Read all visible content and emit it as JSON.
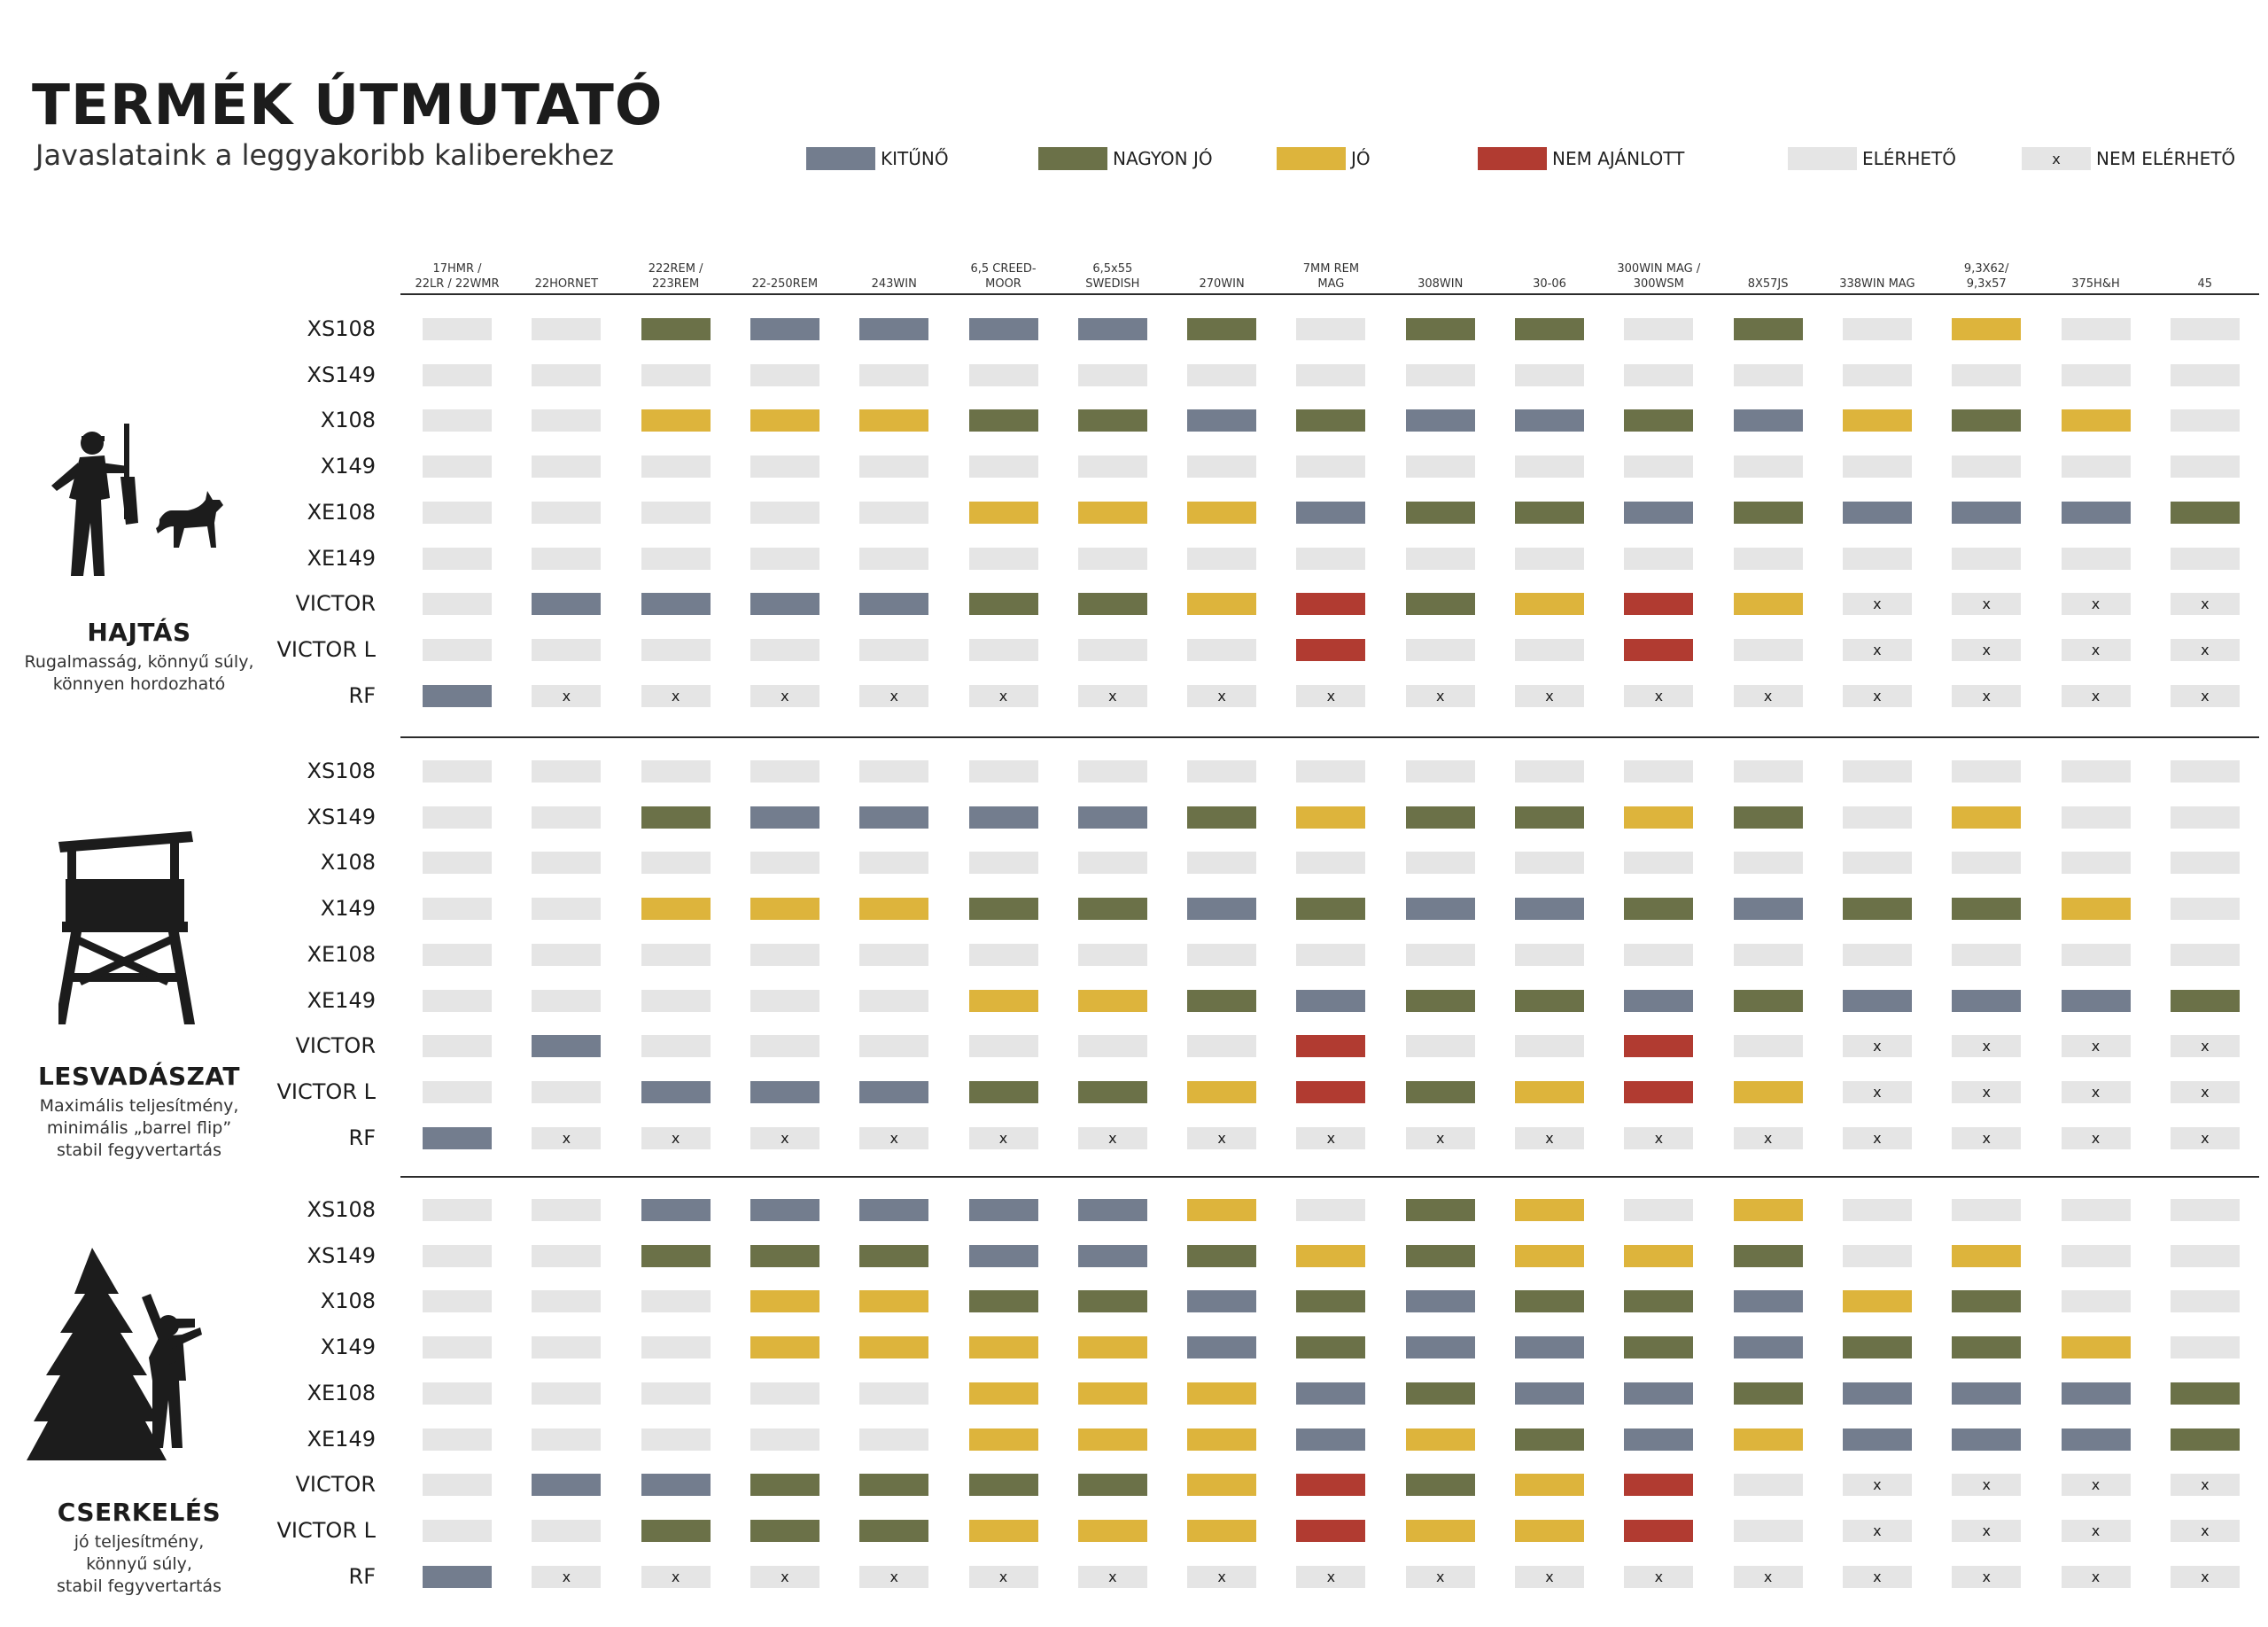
{
  "title": "TERMÉK ÚTMUTATÓ",
  "subtitle": "Javaslataink a leggyakoribb kaliberekhez",
  "legend": [
    {
      "key": "K",
      "label": "KITŰNŐ",
      "color": "#737d8e",
      "mark": ""
    },
    {
      "key": "N",
      "label": "NAGYON JÓ",
      "color": "#6b7148",
      "mark": ""
    },
    {
      "key": "J",
      "label": "JÓ",
      "color": "#ddb43c",
      "mark": ""
    },
    {
      "key": "R",
      "label": "NEM AJÁNLOTT",
      "color": "#b13b31",
      "mark": ""
    },
    {
      "key": "E",
      "label": "ELÉRHETŐ",
      "color": "#e5e5e5",
      "mark": ""
    },
    {
      "key": "X",
      "label": "NEM ELÉRHETŐ",
      "color": "#e5e5e5",
      "mark": "x"
    }
  ],
  "chart_data": {
    "type": "table",
    "columns": [
      "17HMR /\n22LR / 22WMR",
      "22HORNET",
      "222REM /\n223REM",
      "22-250REM",
      "243WIN",
      "6,5 CREED-\nMOOR",
      "6,5x55\nSWEDISH",
      "270WIN",
      "7MM REM\nMAG",
      "308WIN",
      "30-06",
      "300WIN MAG /\n300WSM",
      "8X57JS",
      "338WIN MAG",
      "9,3X62/\n9,3x57",
      "375H&H",
      "45"
    ],
    "sections": [
      {
        "title": "HAJTÁS",
        "description": "Rugalmasság, könnyű súly,\nkönnyen hordozható",
        "icon": "hunter-with-dog-icon",
        "rows": [
          {
            "label": "XS108",
            "cells": [
              "E",
              "E",
              "N",
              "K",
              "K",
              "K",
              "K",
              "N",
              "E",
              "N",
              "N",
              "E",
              "N",
              "E",
              "J",
              "E",
              "E"
            ]
          },
          {
            "label": "XS149",
            "cells": [
              "E",
              "E",
              "E",
              "E",
              "E",
              "E",
              "E",
              "E",
              "E",
              "E",
              "E",
              "E",
              "E",
              "E",
              "E",
              "E",
              "E"
            ]
          },
          {
            "label": "X108",
            "cells": [
              "E",
              "E",
              "J",
              "J",
              "J",
              "N",
              "N",
              "K",
              "N",
              "K",
              "K",
              "N",
              "K",
              "J",
              "N",
              "J",
              "E"
            ]
          },
          {
            "label": "X149",
            "cells": [
              "E",
              "E",
              "E",
              "E",
              "E",
              "E",
              "E",
              "E",
              "E",
              "E",
              "E",
              "E",
              "E",
              "E",
              "E",
              "E",
              "E"
            ]
          },
          {
            "label": "XE108",
            "cells": [
              "E",
              "E",
              "E",
              "E",
              "E",
              "J",
              "J",
              "J",
              "K",
              "N",
              "N",
              "K",
              "N",
              "K",
              "K",
              "K",
              "N"
            ]
          },
          {
            "label": "XE149",
            "cells": [
              "E",
              "E",
              "E",
              "E",
              "E",
              "E",
              "E",
              "E",
              "E",
              "E",
              "E",
              "E",
              "E",
              "E",
              "E",
              "E",
              "E"
            ]
          },
          {
            "label": "VICTOR",
            "cells": [
              "E",
              "K",
              "K",
              "K",
              "K",
              "N",
              "N",
              "J",
              "R",
              "N",
              "J",
              "R",
              "J",
              "X",
              "X",
              "X",
              "X"
            ]
          },
          {
            "label": "VICTOR L",
            "cells": [
              "E",
              "E",
              "E",
              "E",
              "E",
              "E",
              "E",
              "E",
              "R",
              "E",
              "E",
              "R",
              "E",
              "X",
              "X",
              "X",
              "X"
            ]
          },
          {
            "label": "RF",
            "cells": [
              "K",
              "X",
              "X",
              "X",
              "X",
              "X",
              "X",
              "X",
              "X",
              "X",
              "X",
              "X",
              "X",
              "X",
              "X",
              "X",
              "X"
            ]
          }
        ]
      },
      {
        "title": "LESVADÁSZAT",
        "description": "Maximális teljesítmény,\nminimális „barrel flip”\nstabil fegyvertartás",
        "icon": "hunting-tower-icon",
        "rows": [
          {
            "label": "XS108",
            "cells": [
              "E",
              "E",
              "E",
              "E",
              "E",
              "E",
              "E",
              "E",
              "E",
              "E",
              "E",
              "E",
              "E",
              "E",
              "E",
              "E",
              "E"
            ]
          },
          {
            "label": "XS149",
            "cells": [
              "E",
              "E",
              "N",
              "K",
              "K",
              "K",
              "K",
              "N",
              "J",
              "N",
              "N",
              "J",
              "N",
              "E",
              "J",
              "E",
              "E"
            ]
          },
          {
            "label": "X108",
            "cells": [
              "E",
              "E",
              "E",
              "E",
              "E",
              "E",
              "E",
              "E",
              "E",
              "E",
              "E",
              "E",
              "E",
              "E",
              "E",
              "E",
              "E"
            ]
          },
          {
            "label": "X149",
            "cells": [
              "E",
              "E",
              "J",
              "J",
              "J",
              "N",
              "N",
              "K",
              "N",
              "K",
              "K",
              "N",
              "K",
              "N",
              "N",
              "J",
              "E"
            ]
          },
          {
            "label": "XE108",
            "cells": [
              "E",
              "E",
              "E",
              "E",
              "E",
              "E",
              "E",
              "E",
              "E",
              "E",
              "E",
              "E",
              "E",
              "E",
              "E",
              "E",
              "E"
            ]
          },
          {
            "label": "XE149",
            "cells": [
              "E",
              "E",
              "E",
              "E",
              "E",
              "J",
              "J",
              "N",
              "K",
              "N",
              "N",
              "K",
              "N",
              "K",
              "K",
              "K",
              "N"
            ]
          },
          {
            "label": "VICTOR",
            "cells": [
              "E",
              "K",
              "E",
              "E",
              "E",
              "E",
              "E",
              "E",
              "R",
              "E",
              "E",
              "R",
              "E",
              "X",
              "X",
              "X",
              "X"
            ]
          },
          {
            "label": "VICTOR L",
            "cells": [
              "E",
              "E",
              "K",
              "K",
              "K",
              "N",
              "N",
              "J",
              "R",
              "N",
              "J",
              "R",
              "J",
              "X",
              "X",
              "X",
              "X"
            ]
          },
          {
            "label": "RF",
            "cells": [
              "K",
              "X",
              "X",
              "X",
              "X",
              "X",
              "X",
              "X",
              "X",
              "X",
              "X",
              "X",
              "X",
              "X",
              "X",
              "X",
              "X"
            ]
          }
        ]
      },
      {
        "title": "CSERKELÉS",
        "description": "jó teljesítmény,\nkönnyű súly,\nstabil fegyvertartás",
        "icon": "stalking-hunter-tree-icon",
        "rows": [
          {
            "label": "XS108",
            "cells": [
              "E",
              "E",
              "K",
              "K",
              "K",
              "K",
              "K",
              "J",
              "E",
              "N",
              "J",
              "E",
              "J",
              "E",
              "E",
              "E",
              "E"
            ]
          },
          {
            "label": "XS149",
            "cells": [
              "E",
              "E",
              "N",
              "N",
              "N",
              "K",
              "K",
              "N",
              "J",
              "N",
              "J",
              "J",
              "N",
              "E",
              "J",
              "E",
              "E"
            ]
          },
          {
            "label": "X108",
            "cells": [
              "E",
              "E",
              "E",
              "J",
              "J",
              "N",
              "N",
              "K",
              "N",
              "K",
              "N",
              "N",
              "K",
              "J",
              "N",
              "E",
              "E"
            ]
          },
          {
            "label": "X149",
            "cells": [
              "E",
              "E",
              "E",
              "J",
              "J",
              "J",
              "J",
              "K",
              "N",
              "K",
              "K",
              "N",
              "K",
              "N",
              "N",
              "J",
              "E"
            ]
          },
          {
            "label": "XE108",
            "cells": [
              "E",
              "E",
              "E",
              "E",
              "E",
              "J",
              "J",
              "J",
              "K",
              "N",
              "K",
              "K",
              "N",
              "K",
              "K",
              "K",
              "N"
            ]
          },
          {
            "label": "XE149",
            "cells": [
              "E",
              "E",
              "E",
              "E",
              "E",
              "J",
              "J",
              "J",
              "K",
              "J",
              "N",
              "K",
              "J",
              "K",
              "K",
              "K",
              "N"
            ]
          },
          {
            "label": "VICTOR",
            "cells": [
              "E",
              "K",
              "K",
              "N",
              "N",
              "N",
              "N",
              "J",
              "R",
              "N",
              "J",
              "R",
              "E",
              "X",
              "X",
              "X",
              "X"
            ]
          },
          {
            "label": "VICTOR L",
            "cells": [
              "E",
              "E",
              "N",
              "N",
              "N",
              "J",
              "J",
              "J",
              "R",
              "J",
              "J",
              "R",
              "E",
              "X",
              "X",
              "X",
              "X"
            ]
          },
          {
            "label": "RF",
            "cells": [
              "K",
              "X",
              "X",
              "X",
              "X",
              "X",
              "X",
              "X",
              "X",
              "X",
              "X",
              "X",
              "X",
              "X",
              "X",
              "X",
              "X"
            ]
          }
        ]
      }
    ]
  }
}
